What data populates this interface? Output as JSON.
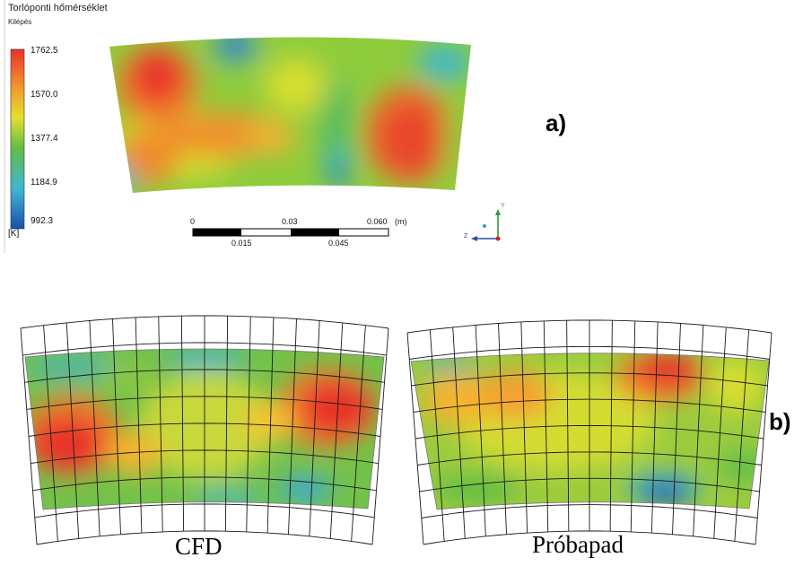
{
  "legend": {
    "title": "Torlóponti hőmérséklet",
    "subtitle": "Kilépés",
    "unit": "[K]",
    "ticks": [
      "1762.5",
      "1570.0",
      "1377.4",
      "1184.9",
      "992.3"
    ]
  },
  "scale_bar": {
    "top_labels": [
      "0",
      "0.03",
      "0.060",
      "(m)"
    ],
    "bottom_labels": [
      "0.015",
      "0.045"
    ]
  },
  "axis_triad": {
    "y": "Y",
    "z": "Z"
  },
  "panels": {
    "a": "a)",
    "b": "b)"
  },
  "captions": {
    "left": "CFD",
    "right": "Próbapad"
  },
  "colors": {
    "red": "#e8312a",
    "orange": "#f07a2c",
    "yellow": "#d9de2c",
    "green": "#5cbc44",
    "cyan": "#36b6d8",
    "blue": "#1a50b0"
  }
}
